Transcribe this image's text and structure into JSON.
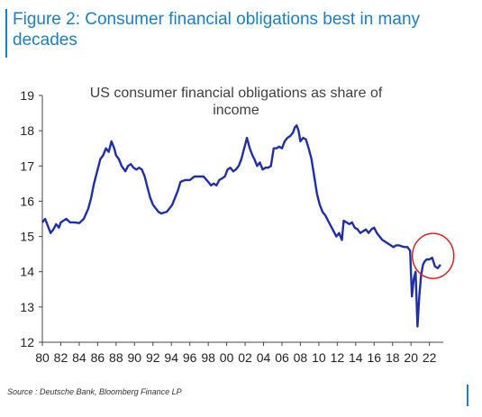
{
  "figure_title": "Figure 2: Consumer financial obligations best in many decades",
  "source": "Source : Deutsche Bank, Bloomberg Finance LP",
  "colors": {
    "accent": "#1a7fc4",
    "line": "#1f2fa8",
    "highlight": "#e02020"
  },
  "chart_data": {
    "type": "line",
    "title": "US consumer financial obligations as share of income",
    "xlabel": "",
    "ylabel": "",
    "xlim": [
      1980,
      2023.5
    ],
    "ylim": [
      12,
      19
    ],
    "y_ticks": [
      12,
      13,
      14,
      15,
      16,
      17,
      18,
      19
    ],
    "x_ticks": [
      1980,
      1982,
      1984,
      1986,
      1988,
      1990,
      1992,
      1994,
      1996,
      1998,
      2000,
      2002,
      2004,
      2006,
      2008,
      2010,
      2012,
      2014,
      2016,
      2018,
      2020,
      2022
    ],
    "x_tick_labels": [
      "80",
      "82",
      "84",
      "86",
      "88",
      "90",
      "92",
      "94",
      "96",
      "98",
      "00",
      "02",
      "04",
      "06",
      "08",
      "10",
      "12",
      "14",
      "16",
      "18",
      "20",
      "22"
    ],
    "grid": false,
    "annotation": "red circle highlighting 2022-2023",
    "series": [
      {
        "x": [
          1980.0,
          1980.3,
          1980.6,
          1980.9,
          1981.2,
          1981.5,
          1981.8,
          1982.0,
          1982.3,
          1982.6,
          1983.0,
          1983.5,
          1984.0,
          1984.5,
          1985.0,
          1985.3,
          1985.6,
          1986.0,
          1986.3,
          1986.6,
          1986.9,
          1987.2,
          1987.5,
          1987.8,
          1988.0,
          1988.3,
          1988.6,
          1989.0,
          1989.3,
          1989.6,
          1989.9,
          1990.2,
          1990.5,
          1990.8,
          1991.1,
          1991.4,
          1991.7,
          1992.0,
          1992.3,
          1992.6,
          1992.9,
          1993.2,
          1993.5,
          1993.8,
          1994.1,
          1994.4,
          1994.7,
          1995.0,
          1995.5,
          1996.0,
          1996.5,
          1997.0,
          1997.5,
          1998.0,
          1998.3,
          1998.6,
          1998.9,
          1999.2,
          1999.5,
          1999.8,
          2000.1,
          2000.4,
          2000.7,
          2001.0,
          2001.3,
          2001.6,
          2001.8,
          2002.0,
          2002.2,
          2002.5,
          2002.8,
          2003.0,
          2003.3,
          2003.6,
          2003.9,
          2004.2,
          2004.5,
          2004.8,
          2005.1,
          2005.4,
          2005.7,
          2006.0,
          2006.3,
          2006.6,
          2006.9,
          2007.2,
          2007.4,
          2007.6,
          2007.8,
          2008.0,
          2008.3,
          2008.6,
          2008.9,
          2009.2,
          2009.5,
          2009.8,
          2010.1,
          2010.4,
          2010.7,
          2011.0,
          2011.3,
          2011.6,
          2011.9,
          2012.2,
          2012.5,
          2012.7,
          2013.0,
          2013.3,
          2013.6,
          2013.9,
          2014.2,
          2014.5,
          2014.8,
          2015.1,
          2015.4,
          2015.7,
          2016.0,
          2016.3,
          2016.6,
          2016.9,
          2017.2,
          2017.5,
          2017.8,
          2018.1,
          2018.4,
          2018.7,
          2019.0,
          2019.3,
          2019.6,
          2019.9,
          2020.1,
          2020.3,
          2020.5,
          2020.7,
          2020.9,
          2021.1,
          2021.3,
          2021.5,
          2021.7,
          2022.0,
          2022.3,
          2022.6,
          2022.9,
          2023.2
        ],
        "values": [
          15.4,
          15.5,
          15.3,
          15.1,
          15.2,
          15.35,
          15.25,
          15.4,
          15.45,
          15.5,
          15.4,
          15.4,
          15.38,
          15.5,
          15.8,
          16.1,
          16.5,
          16.9,
          17.2,
          17.3,
          17.5,
          17.4,
          17.7,
          17.5,
          17.3,
          17.2,
          17.0,
          16.85,
          17.0,
          17.05,
          16.95,
          16.9,
          16.95,
          16.9,
          16.7,
          16.4,
          16.1,
          15.9,
          15.8,
          15.7,
          15.65,
          15.68,
          15.7,
          15.8,
          15.9,
          16.1,
          16.3,
          16.55,
          16.6,
          16.6,
          16.7,
          16.7,
          16.7,
          16.55,
          16.45,
          16.5,
          16.45,
          16.6,
          16.65,
          16.7,
          16.9,
          16.95,
          16.85,
          16.9,
          17.0,
          17.2,
          17.4,
          17.6,
          17.8,
          17.5,
          17.3,
          17.2,
          17.0,
          17.1,
          16.9,
          16.95,
          16.95,
          17.0,
          17.5,
          17.5,
          17.55,
          17.5,
          17.7,
          17.8,
          17.85,
          17.95,
          18.1,
          18.15,
          18.0,
          17.7,
          17.8,
          17.75,
          17.5,
          17.2,
          16.7,
          16.2,
          15.9,
          15.7,
          15.6,
          15.45,
          15.3,
          15.15,
          15.0,
          15.1,
          14.9,
          15.45,
          15.4,
          15.35,
          15.4,
          15.25,
          15.2,
          15.1,
          15.15,
          15.2,
          15.1,
          15.2,
          15.25,
          15.1,
          15.0,
          14.9,
          14.85,
          14.8,
          14.75,
          14.7,
          14.75,
          14.75,
          14.72,
          14.7,
          14.7,
          14.6,
          13.3,
          13.8,
          14.0,
          12.45,
          13.3,
          13.9,
          14.2,
          14.3,
          14.35,
          14.35,
          14.4,
          14.15,
          14.1,
          14.2
        ]
      }
    ]
  }
}
